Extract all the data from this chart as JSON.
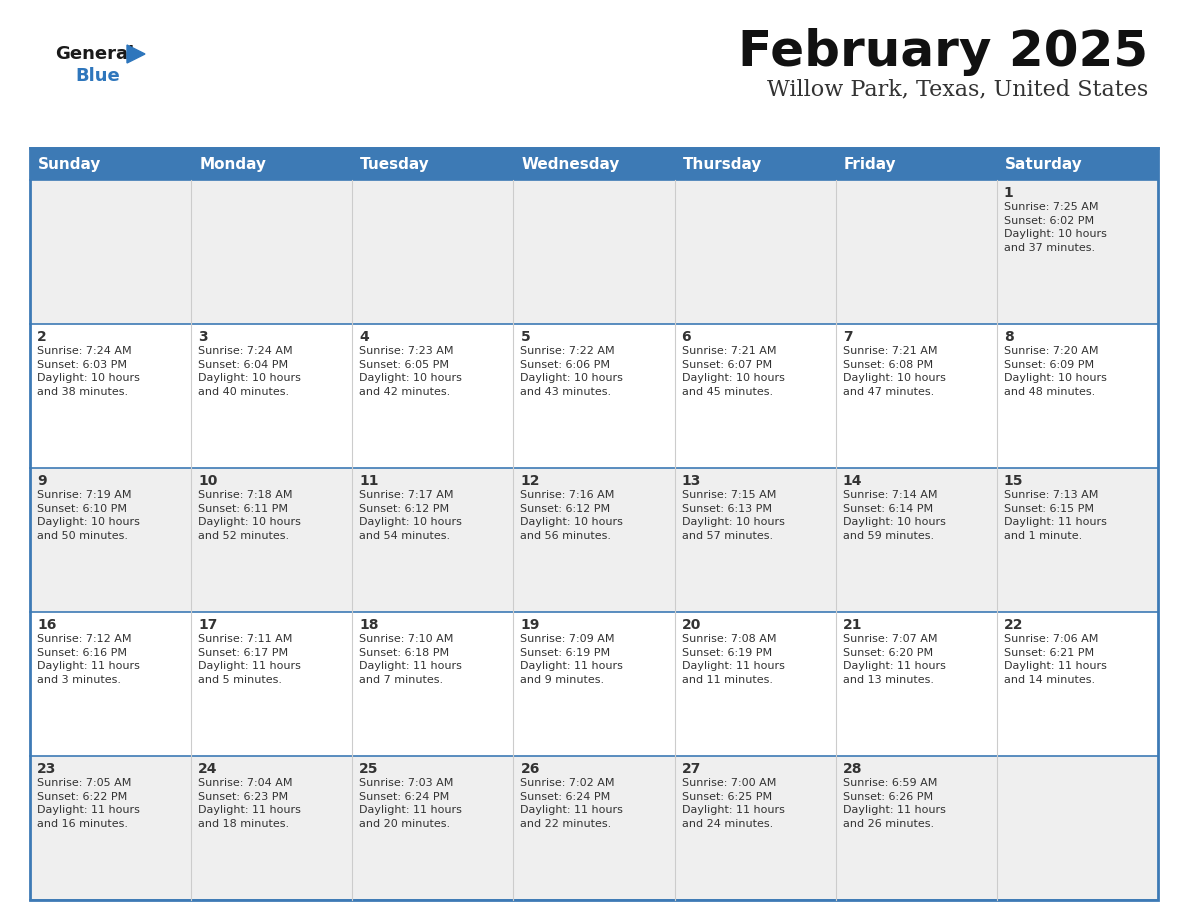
{
  "title": "February 2025",
  "subtitle": "Willow Park, Texas, United States",
  "days_of_week": [
    "Sunday",
    "Monday",
    "Tuesday",
    "Wednesday",
    "Thursday",
    "Friday",
    "Saturday"
  ],
  "header_bg": "#3d7ab5",
  "header_text": "#ffffff",
  "row_bg_odd": "#efefef",
  "row_bg_even": "#ffffff",
  "border_color": "#3d7ab5",
  "cell_text_color": "#333333",
  "day_num_color": "#333333",
  "logo_general_color": "#1a1a1a",
  "logo_blue_color": "#2e76bc",
  "calendar": [
    [
      {
        "day": null,
        "info": null
      },
      {
        "day": null,
        "info": null
      },
      {
        "day": null,
        "info": null
      },
      {
        "day": null,
        "info": null
      },
      {
        "day": null,
        "info": null
      },
      {
        "day": null,
        "info": null
      },
      {
        "day": 1,
        "info": "Sunrise: 7:25 AM\nSunset: 6:02 PM\nDaylight: 10 hours\nand 37 minutes."
      }
    ],
    [
      {
        "day": 2,
        "info": "Sunrise: 7:24 AM\nSunset: 6:03 PM\nDaylight: 10 hours\nand 38 minutes."
      },
      {
        "day": 3,
        "info": "Sunrise: 7:24 AM\nSunset: 6:04 PM\nDaylight: 10 hours\nand 40 minutes."
      },
      {
        "day": 4,
        "info": "Sunrise: 7:23 AM\nSunset: 6:05 PM\nDaylight: 10 hours\nand 42 minutes."
      },
      {
        "day": 5,
        "info": "Sunrise: 7:22 AM\nSunset: 6:06 PM\nDaylight: 10 hours\nand 43 minutes."
      },
      {
        "day": 6,
        "info": "Sunrise: 7:21 AM\nSunset: 6:07 PM\nDaylight: 10 hours\nand 45 minutes."
      },
      {
        "day": 7,
        "info": "Sunrise: 7:21 AM\nSunset: 6:08 PM\nDaylight: 10 hours\nand 47 minutes."
      },
      {
        "day": 8,
        "info": "Sunrise: 7:20 AM\nSunset: 6:09 PM\nDaylight: 10 hours\nand 48 minutes."
      }
    ],
    [
      {
        "day": 9,
        "info": "Sunrise: 7:19 AM\nSunset: 6:10 PM\nDaylight: 10 hours\nand 50 minutes."
      },
      {
        "day": 10,
        "info": "Sunrise: 7:18 AM\nSunset: 6:11 PM\nDaylight: 10 hours\nand 52 minutes."
      },
      {
        "day": 11,
        "info": "Sunrise: 7:17 AM\nSunset: 6:12 PM\nDaylight: 10 hours\nand 54 minutes."
      },
      {
        "day": 12,
        "info": "Sunrise: 7:16 AM\nSunset: 6:12 PM\nDaylight: 10 hours\nand 56 minutes."
      },
      {
        "day": 13,
        "info": "Sunrise: 7:15 AM\nSunset: 6:13 PM\nDaylight: 10 hours\nand 57 minutes."
      },
      {
        "day": 14,
        "info": "Sunrise: 7:14 AM\nSunset: 6:14 PM\nDaylight: 10 hours\nand 59 minutes."
      },
      {
        "day": 15,
        "info": "Sunrise: 7:13 AM\nSunset: 6:15 PM\nDaylight: 11 hours\nand 1 minute."
      }
    ],
    [
      {
        "day": 16,
        "info": "Sunrise: 7:12 AM\nSunset: 6:16 PM\nDaylight: 11 hours\nand 3 minutes."
      },
      {
        "day": 17,
        "info": "Sunrise: 7:11 AM\nSunset: 6:17 PM\nDaylight: 11 hours\nand 5 minutes."
      },
      {
        "day": 18,
        "info": "Sunrise: 7:10 AM\nSunset: 6:18 PM\nDaylight: 11 hours\nand 7 minutes."
      },
      {
        "day": 19,
        "info": "Sunrise: 7:09 AM\nSunset: 6:19 PM\nDaylight: 11 hours\nand 9 minutes."
      },
      {
        "day": 20,
        "info": "Sunrise: 7:08 AM\nSunset: 6:19 PM\nDaylight: 11 hours\nand 11 minutes."
      },
      {
        "day": 21,
        "info": "Sunrise: 7:07 AM\nSunset: 6:20 PM\nDaylight: 11 hours\nand 13 minutes."
      },
      {
        "day": 22,
        "info": "Sunrise: 7:06 AM\nSunset: 6:21 PM\nDaylight: 11 hours\nand 14 minutes."
      }
    ],
    [
      {
        "day": 23,
        "info": "Sunrise: 7:05 AM\nSunset: 6:22 PM\nDaylight: 11 hours\nand 16 minutes."
      },
      {
        "day": 24,
        "info": "Sunrise: 7:04 AM\nSunset: 6:23 PM\nDaylight: 11 hours\nand 18 minutes."
      },
      {
        "day": 25,
        "info": "Sunrise: 7:03 AM\nSunset: 6:24 PM\nDaylight: 11 hours\nand 20 minutes."
      },
      {
        "day": 26,
        "info": "Sunrise: 7:02 AM\nSunset: 6:24 PM\nDaylight: 11 hours\nand 22 minutes."
      },
      {
        "day": 27,
        "info": "Sunrise: 7:00 AM\nSunset: 6:25 PM\nDaylight: 11 hours\nand 24 minutes."
      },
      {
        "day": 28,
        "info": "Sunrise: 6:59 AM\nSunset: 6:26 PM\nDaylight: 11 hours\nand 26 minutes."
      },
      {
        "day": null,
        "info": null
      }
    ]
  ],
  "title_fontsize": 36,
  "subtitle_fontsize": 16,
  "header_fontsize": 11,
  "day_num_fontsize": 10,
  "cell_info_fontsize": 8
}
